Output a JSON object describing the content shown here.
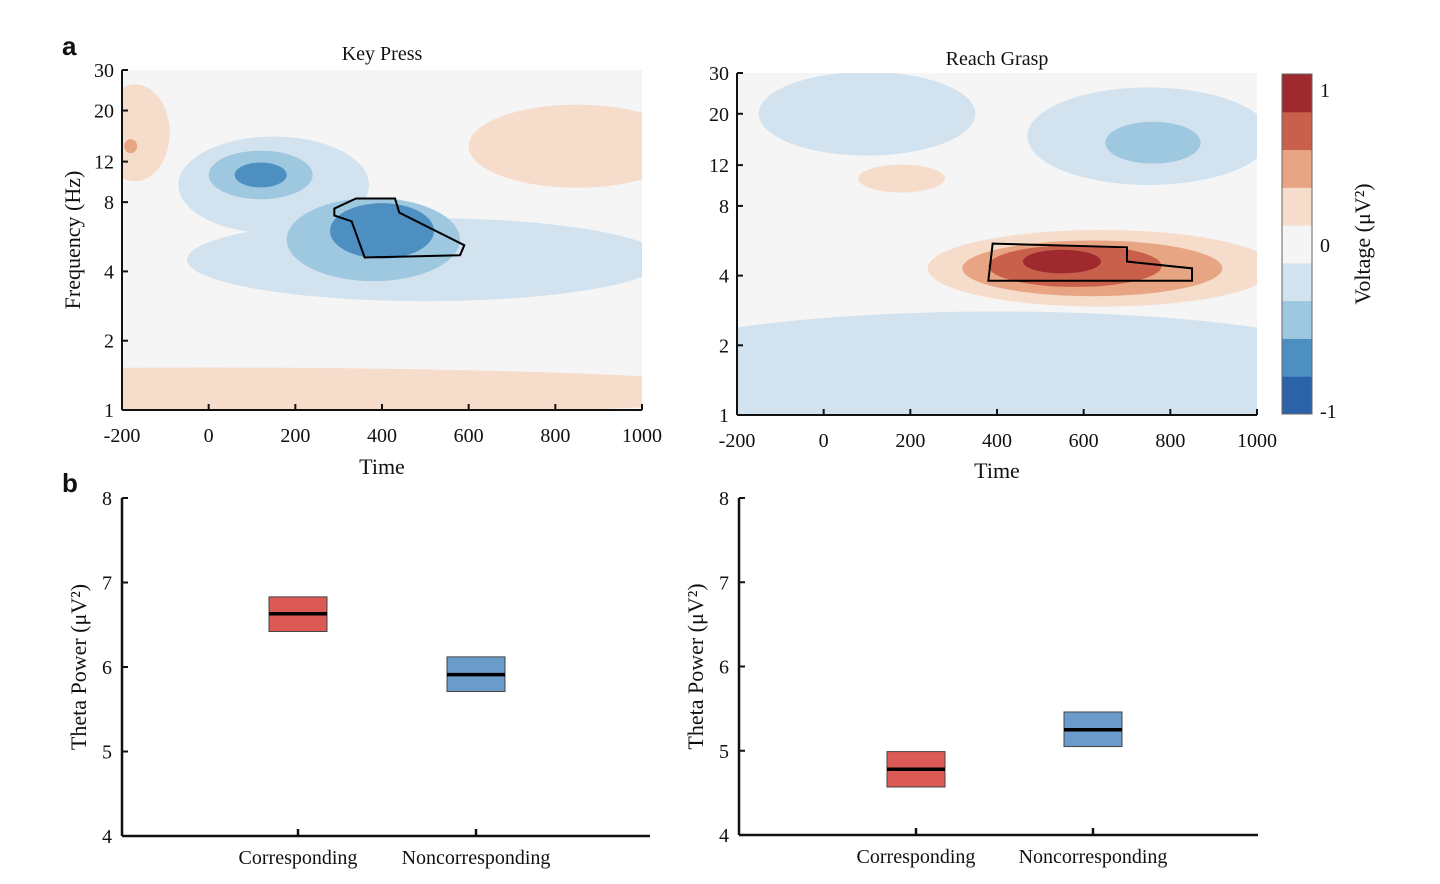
{
  "panel_labels": [
    "a",
    "b"
  ],
  "colors": {
    "colormap": [
      "#2c62a8",
      "#4d8fc1",
      "#9ec8df",
      "#d2e3ef",
      "#f5f5f5",
      "#f6dccb",
      "#e8a583",
      "#c8604c",
      "#9e2a2f"
    ],
    "corresponding": "#dc5a56",
    "noncorresponding": "#6b9bca"
  },
  "colorbar": {
    "label": "Voltage (μV²)",
    "ticks": [
      "1",
      "0",
      "-1"
    ],
    "range": [
      -1,
      1
    ]
  },
  "chart_data": [
    {
      "type": "heatmap",
      "title": "Key Press",
      "xlabel": "Time",
      "ylabel": "Frequency (Hz)",
      "xlim": [
        -200,
        1000
      ],
      "ylim": [
        1,
        30
      ],
      "yscale": "log",
      "xticks": [
        "-200",
        "0",
        "200",
        "400",
        "600",
        "800",
        "1000"
      ],
      "yticks": [
        "1",
        "2",
        "4",
        "8",
        "12",
        "20",
        "30"
      ],
      "contour_regions": [
        {
          "time": 0,
          "freq": 1.2,
          "time_half_width": 1300,
          "octave_half_width": 0.35,
          "level": 0.25
        },
        {
          "time": 850,
          "freq": 14,
          "time_half_width": 250,
          "octave_half_width": 0.6,
          "level": 0.25
        },
        {
          "time": -170,
          "freq": 16,
          "time_half_width": 80,
          "octave_half_width": 0.7,
          "level": 0.25
        },
        {
          "time": -180,
          "freq": 14,
          "time_half_width": 15,
          "octave_half_width": 0.1,
          "level": 0.5
        },
        {
          "time": 500,
          "freq": 4.5,
          "time_half_width": 550,
          "octave_half_width": 0.6,
          "level": -0.25
        },
        {
          "time": 150,
          "freq": 9.5,
          "time_half_width": 220,
          "octave_half_width": 0.7,
          "level": -0.25
        },
        {
          "time": 380,
          "freq": 5.5,
          "time_half_width": 200,
          "octave_half_width": 0.6,
          "level": -0.5
        },
        {
          "time": 120,
          "freq": 10.5,
          "time_half_width": 120,
          "octave_half_width": 0.35,
          "level": -0.5
        },
        {
          "time": 400,
          "freq": 6,
          "time_half_width": 120,
          "octave_half_width": 0.4,
          "level": -0.75
        },
        {
          "time": 120,
          "freq": 10.5,
          "time_half_width": 60,
          "octave_half_width": 0.18,
          "level": -0.75
        }
      ],
      "significant_cluster": [
        [
          290,
          7.5
        ],
        [
          340,
          8.3
        ],
        [
          430,
          8.3
        ],
        [
          440,
          7.2
        ],
        [
          590,
          5.2
        ],
        [
          580,
          4.7
        ],
        [
          360,
          4.6
        ],
        [
          330,
          6.6
        ],
        [
          290,
          7
        ]
      ]
    },
    {
      "type": "heatmap",
      "title": "Reach Grasp",
      "xlabel": "Time",
      "ylabel": "",
      "xlim": [
        -200,
        1000
      ],
      "ylim": [
        1,
        30
      ],
      "yscale": "log",
      "xticks": [
        "-200",
        "0",
        "200",
        "400",
        "600",
        "800",
        "1000"
      ],
      "yticks": [
        "1",
        "2",
        "4",
        "8",
        "12",
        "20",
        "30"
      ],
      "contour_regions": [
        {
          "time": 400,
          "freq": 1.5,
          "time_half_width": 900,
          "octave_half_width": 0.9,
          "level": -0.25
        },
        {
          "time": 100,
          "freq": 20,
          "time_half_width": 250,
          "octave_half_width": 0.6,
          "level": -0.25
        },
        {
          "time": 750,
          "freq": 16,
          "time_half_width": 280,
          "octave_half_width": 0.7,
          "level": -0.25
        },
        {
          "time": 760,
          "freq": 15,
          "time_half_width": 110,
          "octave_half_width": 0.3,
          "level": -0.5
        },
        {
          "time": 180,
          "freq": 10.5,
          "time_half_width": 100,
          "octave_half_width": 0.2,
          "level": 0.25
        },
        {
          "time": 640,
          "freq": 4.3,
          "time_half_width": 400,
          "octave_half_width": 0.55,
          "level": 0.25
        },
        {
          "time": 620,
          "freq": 4.3,
          "time_half_width": 300,
          "octave_half_width": 0.4,
          "level": 0.5
        },
        {
          "time": 580,
          "freq": 4.4,
          "time_half_width": 200,
          "octave_half_width": 0.3,
          "level": 0.75
        },
        {
          "time": 550,
          "freq": 4.6,
          "time_half_width": 90,
          "octave_half_width": 0.17,
          "level": 1
        }
      ],
      "significant_cluster": [
        [
          390,
          5.5
        ],
        [
          700,
          5.3
        ],
        [
          700,
          4.6
        ],
        [
          850,
          4.3
        ],
        [
          850,
          3.8
        ],
        [
          380,
          3.8
        ],
        [
          390,
          5.5
        ]
      ]
    },
    {
      "type": "box",
      "title": "",
      "xlabel": "",
      "ylabel": "Theta Power (μV²)",
      "ylim": [
        4,
        8
      ],
      "yticks": [
        "4",
        "5",
        "6",
        "7",
        "8"
      ],
      "categories": [
        "Corresponding",
        "Noncorresponding"
      ],
      "series": [
        {
          "mean": [
            6.63,
            5.91
          ],
          "lower": [
            6.42,
            5.71
          ],
          "upper": [
            6.83,
            6.12
          ]
        }
      ]
    },
    {
      "type": "box",
      "title": "",
      "xlabel": "",
      "ylabel": "Theta Power (μV²)",
      "ylim": [
        4,
        8
      ],
      "yticks": [
        "4",
        "5",
        "6",
        "7",
        "8"
      ],
      "categories": [
        "Corresponding",
        "Noncorresponding"
      ],
      "series": [
        {
          "mean": [
            4.78,
            5.25
          ],
          "lower": [
            4.57,
            5.05
          ],
          "upper": [
            4.99,
            5.46
          ]
        }
      ]
    }
  ]
}
